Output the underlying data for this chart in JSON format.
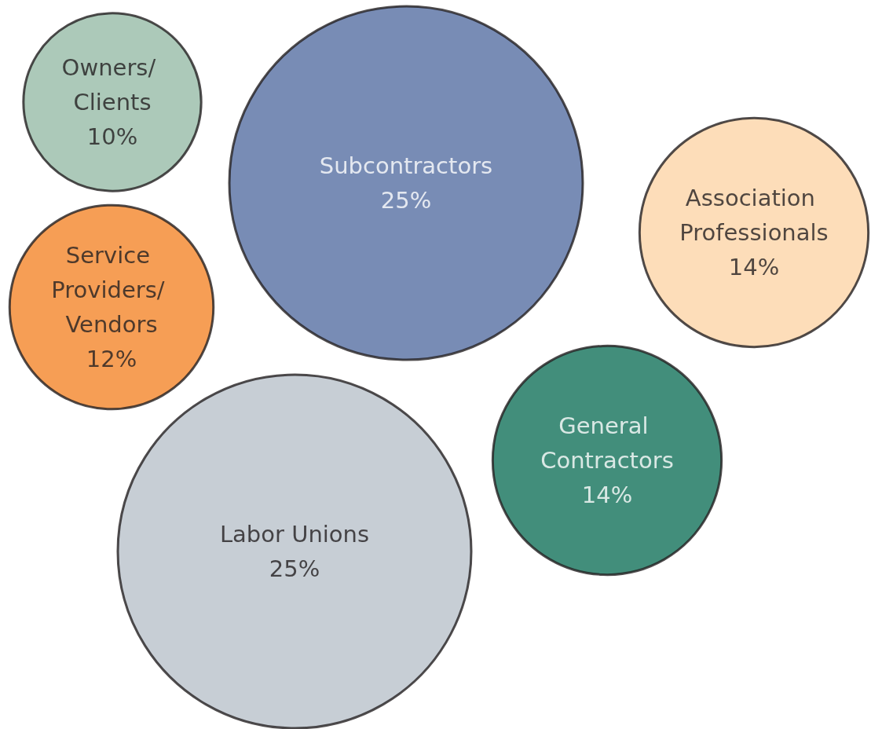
{
  "chart_data": {
    "type": "other",
    "categories": [
      "Owners/ Clients",
      "Subcontractors",
      "Association Professionals",
      "Service Providers/ Vendors",
      "General Contractors",
      "Labor Unions"
    ],
    "values": [
      10,
      25,
      14,
      12,
      14,
      25
    ],
    "value_labels": [
      "10%",
      "25%",
      "14%",
      "12%",
      "14%",
      "25%"
    ],
    "colors": [
      "#97bba8",
      "#566fa3",
      "#fdd5a7",
      "#f4862a",
      "#13725a",
      "#b9c2ca"
    ]
  }
}
